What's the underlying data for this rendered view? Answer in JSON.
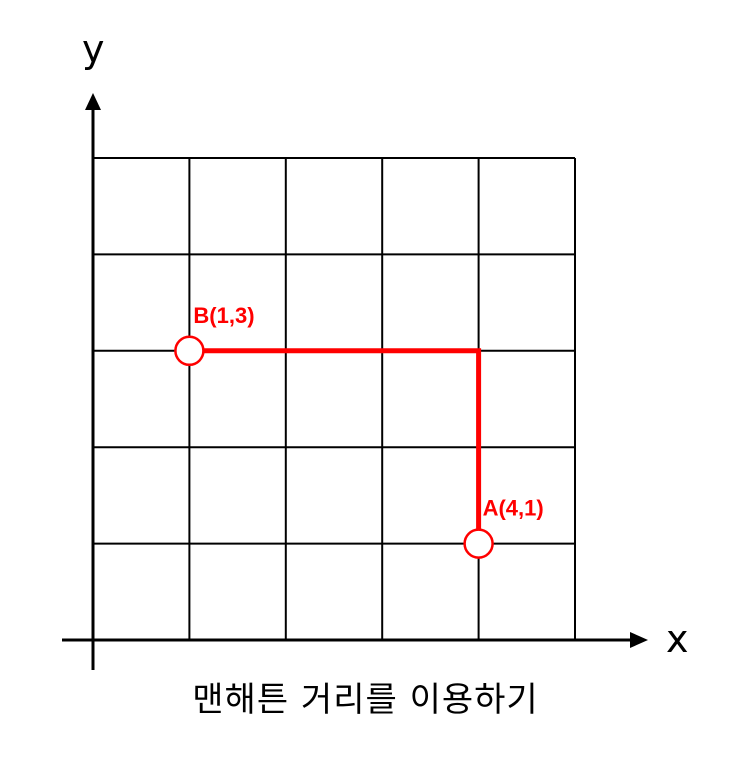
{
  "axes": {
    "x_label": "x",
    "y_label": "y"
  },
  "grid": {
    "columns": 5,
    "rows": 5,
    "x_range": [
      0,
      5
    ],
    "y_range": [
      0,
      5
    ]
  },
  "points": [
    {
      "label": "B(1,3)",
      "x": 1,
      "y": 3
    },
    {
      "label": "A(4,1)",
      "x": 4,
      "y": 1
    }
  ],
  "path": [
    {
      "x": 1,
      "y": 3
    },
    {
      "x": 4,
      "y": 3
    },
    {
      "x": 4,
      "y": 1
    }
  ],
  "colors": {
    "highlight": "#ff0000",
    "grid": "#000000"
  },
  "caption": "맨해튼 거리를 이용하기"
}
